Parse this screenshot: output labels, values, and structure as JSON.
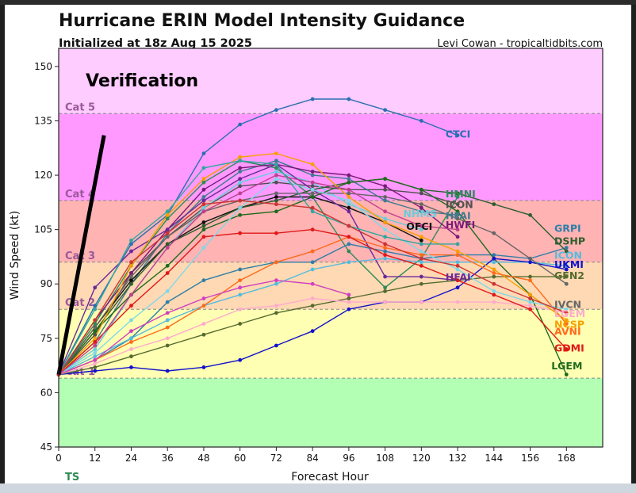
{
  "window": {
    "title": "Hurricane ERIN Model Intensity Guidance"
  },
  "chart_data": {
    "type": "line",
    "title": "Hurricane ERIN Model Intensity Guidance",
    "subtitle": "Initialized at 18z Aug 15 2025",
    "credit": "Levi Cowan - tropicaltidbits.com",
    "xlabel": "Forecast Hour",
    "ylabel": "Wind Speed (kt)",
    "xlim": [
      0,
      180
    ],
    "ylim": [
      45,
      155
    ],
    "x_ticks": [
      0,
      12,
      24,
      36,
      48,
      60,
      72,
      84,
      96,
      108,
      120,
      132,
      144,
      156,
      168
    ],
    "x_tick_labels": [
      "0",
      "12",
      "24",
      "36",
      "48",
      "60",
      "72",
      "84",
      "96",
      "108",
      "120",
      "132",
      "144",
      "156",
      "168"
    ],
    "y_ticks": [
      45,
      60,
      75,
      90,
      105,
      120,
      135,
      150
    ],
    "y_tick_labels": [
      "45",
      "60",
      "75",
      "90",
      "105",
      "120",
      "135",
      "150"
    ],
    "grid": false,
    "bands": [
      {
        "from": 45,
        "to": 64,
        "color": "#b3ffb3",
        "label": "TS"
      },
      {
        "from": 64,
        "to": 83,
        "color": "#ffffb3",
        "label": "Cat 1"
      },
      {
        "from": 83,
        "to": 96,
        "color": "#ffd9b3",
        "label": "Cat 2"
      },
      {
        "from": 96,
        "to": 113,
        "color": "#ffb3b3",
        "label": "Cat 3"
      },
      {
        "from": 113,
        "to": 137,
        "color": "#ff99ff",
        "label": "Cat 4"
      },
      {
        "from": 137,
        "to": 155,
        "color": "#ffccff",
        "label": "Cat 5"
      }
    ],
    "band_labels": [
      "TS",
      "Cat 1",
      "Cat 2",
      "Cat 3",
      "Cat 4",
      "Cat 5"
    ],
    "annotation": {
      "text": "Verification",
      "from": [
        0,
        65
      ],
      "to": [
        15,
        131
      ]
    },
    "series": [
      {
        "name": "CTCI",
        "color": "#2b6fb2",
        "x": [
          0,
          12,
          24,
          36,
          48,
          60,
          72,
          84,
          96,
          108,
          120,
          132
        ],
        "values": [
          65,
          84,
          101,
          109,
          126,
          134,
          138,
          141,
          141,
          138,
          135,
          131
        ]
      },
      {
        "name": "HMNI",
        "color": "#2e8b57",
        "x": [
          0,
          12,
          24,
          36,
          48,
          60,
          72,
          84,
          96,
          108,
          120,
          132
        ],
        "values": [
          65,
          79,
          95,
          108,
          118,
          124,
          122,
          114,
          99,
          89,
          97,
          114
        ]
      },
      {
        "name": "ICON",
        "color": "#505050",
        "x": [
          0,
          12,
          24,
          36,
          48,
          60,
          72,
          84,
          96,
          108,
          120,
          132
        ],
        "values": [
          65,
          76,
          93,
          103,
          111,
          117,
          118,
          117,
          116,
          116,
          115,
          112
        ]
      },
      {
        "name": "HFAI",
        "color": "#3d7b8f",
        "x": [
          0,
          12,
          24,
          36,
          48,
          60,
          72,
          84,
          96,
          108,
          120,
          132
        ],
        "values": [
          65,
          74,
          90,
          104,
          114,
          121,
          124,
          120,
          119,
          113,
          110,
          109
        ]
      },
      {
        "name": "NHMS",
        "color": "#66ccdd",
        "x": [
          0,
          12,
          24,
          36,
          48,
          60,
          72,
          84,
          96,
          108,
          120
        ],
        "values": [
          65,
          72,
          87,
          100,
          111,
          118,
          121,
          118,
          112,
          108,
          105
        ]
      },
      {
        "name": "HWFI",
        "color": "#7a1a7a",
        "x": [
          0,
          12,
          24,
          36,
          48,
          60,
          72,
          84,
          96,
          108,
          120,
          132
        ],
        "values": [
          65,
          80,
          93,
          105,
          116,
          122,
          123,
          121,
          120,
          117,
          111,
          103
        ]
      },
      {
        "name": "OFCI",
        "color": "#111111",
        "x": [
          0,
          12,
          24,
          36,
          48,
          60,
          72,
          84,
          96,
          108,
          120
        ],
        "values": [
          65,
          78,
          91,
          101,
          107,
          111,
          114,
          114,
          111,
          107,
          102
        ]
      },
      {
        "name": "HFAI",
        "color": "#6a2a9a",
        "x": [
          0,
          12,
          24,
          36,
          48,
          60,
          72,
          84,
          96,
          108,
          120,
          132
        ],
        "values": [
          65,
          89,
          99,
          105,
          113,
          119,
          123,
          116,
          110,
          92,
          92,
          91
        ]
      },
      {
        "name": "GRPI",
        "color": "#2f7fa8",
        "x": [
          0,
          12,
          24,
          36,
          48,
          60,
          72,
          84,
          96,
          108,
          120,
          132,
          144,
          156,
          168
        ],
        "values": [
          65,
          69,
          75,
          85,
          91,
          94,
          96,
          96,
          101,
          99,
          97,
          98,
          98,
          97,
          100
        ]
      },
      {
        "name": "DSHP",
        "color": "#2e5e2e",
        "x": [
          0,
          12,
          24,
          36,
          48,
          60,
          72,
          84,
          96,
          108,
          120,
          132,
          144,
          156,
          168
        ],
        "values": [
          65,
          77,
          90,
          101,
          106,
          111,
          113,
          116,
          118,
          119,
          116,
          115,
          112,
          109,
          99
        ]
      },
      {
        "name": "LGEM",
        "color": "#1e6b1e",
        "x": [
          0,
          12,
          24,
          36,
          48,
          60,
          72,
          84,
          96,
          108,
          120,
          132,
          144,
          156,
          168
        ],
        "values": [
          65,
          77,
          87,
          95,
          105,
          109,
          110,
          114,
          118,
          119,
          116,
          110,
          97,
          87,
          65
        ]
      },
      {
        "name": "ICON",
        "color": "#55bbdd",
        "x": [
          0,
          12,
          24,
          36,
          48,
          60,
          72,
          84,
          96,
          108,
          120,
          132,
          144,
          156,
          168
        ],
        "values": [
          65,
          70,
          75,
          80,
          84,
          87,
          90,
          94,
          96,
          97,
          96,
          96,
          96,
          96,
          95
        ]
      },
      {
        "name": "UKMI",
        "color": "#1111cc",
        "x": [
          0,
          12,
          24,
          36,
          48,
          60,
          72,
          84,
          96,
          108,
          120,
          132,
          144,
          156,
          168
        ],
        "values": [
          65,
          66,
          67,
          66,
          67,
          69,
          73,
          77,
          83,
          85,
          85,
          89,
          97,
          96,
          94
        ]
      },
      {
        "name": "GFN2",
        "color": "#556b2f",
        "x": [
          0,
          12,
          24,
          36,
          48,
          60,
          72,
          84,
          96,
          108,
          120,
          132,
          144,
          156,
          168
        ],
        "values": [
          65,
          67,
          70,
          73,
          76,
          79,
          82,
          84,
          86,
          88,
          90,
          91,
          92,
          92,
          92
        ]
      },
      {
        "name": "IVCN",
        "color": "#666666",
        "x": [
          0,
          12,
          24,
          36,
          48,
          60,
          72,
          84,
          96,
          108,
          120,
          132,
          144,
          156,
          168
        ],
        "values": [
          65,
          78,
          92,
          103,
          110,
          113,
          115,
          115,
          115,
          114,
          112,
          108,
          104,
          97,
          90
        ]
      },
      {
        "name": "LGEM",
        "color": "#ffaacc",
        "x": [
          0,
          12,
          24,
          36,
          48,
          60,
          72,
          84,
          96,
          108,
          120,
          132,
          144,
          156,
          168
        ],
        "values": [
          65,
          68,
          72,
          75,
          79,
          83,
          84,
          86,
          85,
          85,
          85,
          85,
          85,
          84,
          82
        ]
      },
      {
        "name": "NCSP",
        "color": "#f5a000",
        "x": [
          0,
          12,
          24,
          36,
          48,
          60,
          72,
          84,
          96,
          108,
          120,
          132,
          144,
          156,
          168
        ],
        "values": [
          65,
          75,
          95,
          109,
          119,
          125,
          126,
          123,
          114,
          107,
          103,
          99,
          94,
          87,
          80
        ]
      },
      {
        "name": "AVNI",
        "color": "#ff6a1a",
        "x": [
          0,
          12,
          24,
          36,
          48,
          60,
          72,
          84,
          96,
          108,
          120,
          132,
          144,
          156,
          168
        ],
        "values": [
          65,
          69,
          74,
          78,
          84,
          91,
          96,
          99,
          103,
          100,
          98,
          98,
          93,
          91,
          79
        ]
      },
      {
        "name": "GDMI",
        "color": "#e01818",
        "x": [
          0,
          12,
          24,
          36,
          48,
          60,
          72,
          84,
          96,
          108,
          120,
          132,
          144,
          156,
          168
        ],
        "values": [
          65,
          74,
          84,
          93,
          103,
          104,
          104,
          105,
          103,
          98,
          95,
          91,
          87,
          83,
          72
        ]
      },
      {
        "name": "",
        "color": "#7fd8e8",
        "x": [
          0,
          12,
          24,
          36,
          48,
          60,
          72,
          84,
          96,
          108,
          120,
          132,
          144,
          156,
          168
        ],
        "values": [
          65,
          71,
          80,
          88,
          100,
          111,
          119,
          116,
          113,
          105,
          99,
          94,
          88,
          85,
          83
        ]
      },
      {
        "name": "",
        "color": "#c0408f",
        "x": [
          0,
          12,
          24,
          36,
          48,
          60,
          72,
          84,
          96,
          108,
          120,
          132
        ],
        "values": [
          65,
          73,
          87,
          100,
          110,
          115,
          120,
          118,
          116,
          110,
          106,
          105
        ]
      },
      {
        "name": "",
        "color": "#32a6a0",
        "x": [
          0,
          12,
          24,
          36,
          48,
          60,
          72,
          84,
          96,
          108,
          120,
          132
        ],
        "values": [
          65,
          83,
          102,
          110,
          122,
          124,
          123,
          110,
          106,
          103,
          101,
          101
        ]
      },
      {
        "name": "",
        "color": "#d040c0",
        "x": [
          0,
          12,
          24,
          36,
          48,
          60,
          72,
          84,
          96
        ],
        "values": [
          65,
          69,
          77,
          82,
          86,
          89,
          91,
          90,
          87
        ]
      },
      {
        "name": "",
        "color": "#cc3333",
        "x": [
          0,
          12,
          24,
          36,
          48,
          60,
          72,
          84,
          96,
          108,
          120,
          132,
          144,
          156,
          168
        ],
        "values": [
          65,
          80,
          96,
          104,
          112,
          113,
          112,
          111,
          106,
          101,
          97,
          95,
          90,
          86,
          82
        ]
      }
    ],
    "series_labels": [
      {
        "text": "CTCI",
        "color": "#2b6fb2",
        "x": 128,
        "y": 131.5
      },
      {
        "text": "HMNI",
        "color": "#2e8b57",
        "x": 128,
        "y": 115
      },
      {
        "text": "ICON",
        "color": "#505050",
        "x": 128,
        "y": 112
      },
      {
        "text": "HFAI",
        "color": "#3d7b8f",
        "x": 128,
        "y": 109
      },
      {
        "text": "NHMS",
        "color": "#66ccdd",
        "x": 114,
        "y": 109.5
      },
      {
        "text": "HWFI",
        "color": "#7a1a7a",
        "x": 128,
        "y": 106.5
      },
      {
        "text": "OFCI",
        "color": "#111111",
        "x": 115,
        "y": 106
      },
      {
        "text": "HFAI",
        "color": "#6a2a9a",
        "x": 128,
        "y": 92
      },
      {
        "text": "GRPI",
        "color": "#2f7fa8",
        "x": 164,
        "y": 105.5
      },
      {
        "text": "DSHP",
        "color": "#2e5e2e",
        "x": 164,
        "y": 102
      },
      {
        "text": "ICON",
        "color": "#55bbdd",
        "x": 164,
        "y": 98
      },
      {
        "text": "UKMI",
        "color": "#1111cc",
        "x": 164,
        "y": 95.5
      },
      {
        "text": "GFN2",
        "color": "#556b2f",
        "x": 164,
        "y": 92.5
      },
      {
        "text": "IVCN",
        "color": "#666666",
        "x": 164,
        "y": 84.5
      },
      {
        "text": "LGEM",
        "color": "#ffaacc",
        "x": 164,
        "y": 82
      },
      {
        "text": "NCSP",
        "color": "#f5a000",
        "x": 164,
        "y": 79
      },
      {
        "text": "AVNI",
        "color": "#ff6a1a",
        "x": 164,
        "y": 77
      },
      {
        "text": "GDMI",
        "color": "#e01818",
        "x": 164,
        "y": 72.5
      },
      {
        "text": "LGEM",
        "color": "#1e6b1e",
        "x": 163,
        "y": 67.5
      }
    ]
  }
}
